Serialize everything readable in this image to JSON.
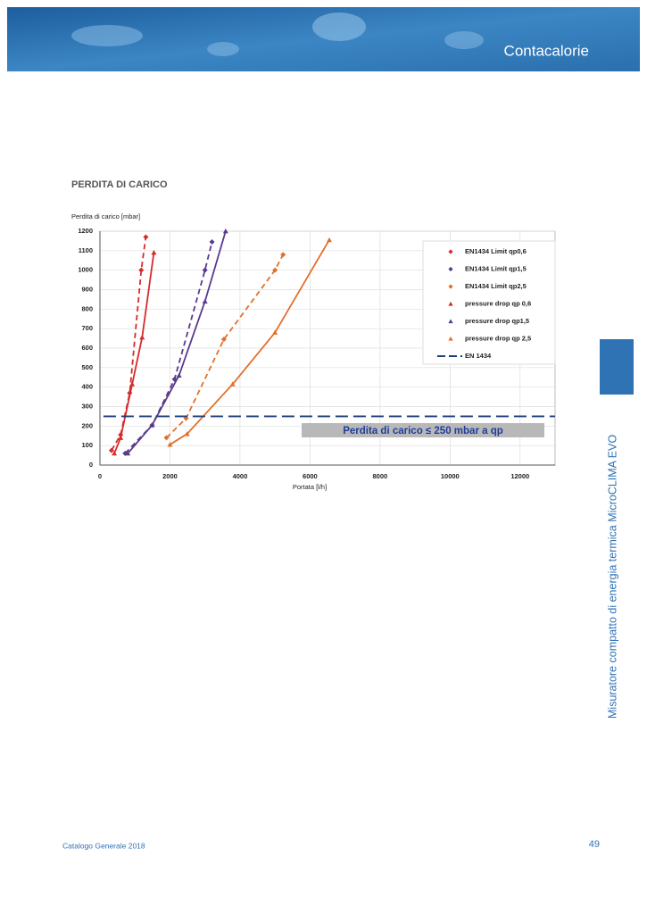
{
  "header": {
    "title": "Contacalorie"
  },
  "section_title": "PERDITA DI CARICO",
  "chart_data": {
    "type": "line",
    "y_label": "Perdita di carico [mbar]",
    "x_label": "Portata [l/h]",
    "xlim": [
      0,
      13000
    ],
    "ylim": [
      0,
      1200
    ],
    "xticks": [
      0,
      2000,
      4000,
      6000,
      8000,
      10000,
      12000
    ],
    "yticks": [
      0,
      100,
      200,
      300,
      400,
      500,
      600,
      700,
      800,
      900,
      1000,
      1100,
      1200
    ],
    "grid": true,
    "legend": "top-right",
    "annotation": "Perdita di carico ≤ 250 mbar a qp",
    "series": [
      {
        "name": "EN1434 Limit qp0,6",
        "color": "#d62b2b",
        "dash": true,
        "marker": "diamond",
        "x": [
          330,
          590,
          850,
          1180,
          1310
        ],
        "values": [
          75,
          155,
          370,
          1000,
          1170
        ]
      },
      {
        "name": "EN1434 Limit qp1,5",
        "color": "#5b3a8e",
        "dash": true,
        "marker": "diamond",
        "x": [
          720,
          1490,
          2130,
          3000,
          3200
        ],
        "values": [
          60,
          205,
          440,
          1000,
          1145
        ]
      },
      {
        "name": "EN1434 Limit qp2,5",
        "color": "#e0702a",
        "dash": true,
        "marker": "diamond",
        "x": [
          1900,
          2460,
          3540,
          5000,
          5230
        ],
        "values": [
          140,
          240,
          645,
          1000,
          1080
        ]
      },
      {
        "name": "pressure drop qp 0,6",
        "color": "#d62b2b",
        "dash": false,
        "marker": "triangle",
        "x": [
          410,
          590,
          920,
          1205,
          1540
        ],
        "values": [
          60,
          140,
          415,
          655,
          1090
        ]
      },
      {
        "name": "pressure drop qp1,5",
        "color": "#5b3a8e",
        "dash": false,
        "marker": "triangle",
        "x": [
          795,
          1490,
          2260,
          3000,
          3590
        ],
        "values": [
          60,
          205,
          460,
          840,
          1200
        ]
      },
      {
        "name": "pressure drop qp 2,5",
        "color": "#e0702a",
        "dash": false,
        "marker": "triangle",
        "x": [
          2000,
          2490,
          3790,
          5000,
          6550
        ],
        "values": [
          105,
          160,
          415,
          680,
          1155
        ]
      },
      {
        "name": "EN 1434",
        "color": "#1f3e7a",
        "dash": true,
        "marker": "none",
        "x": [
          100,
          13000
        ],
        "values": [
          250,
          250
        ]
      }
    ]
  },
  "sidebar": {
    "text": "Misuratore compatto di energia termica MicroCLIMA EVO"
  },
  "footer": {
    "catalog": "Catalogo Generale 2018",
    "page": "49"
  }
}
